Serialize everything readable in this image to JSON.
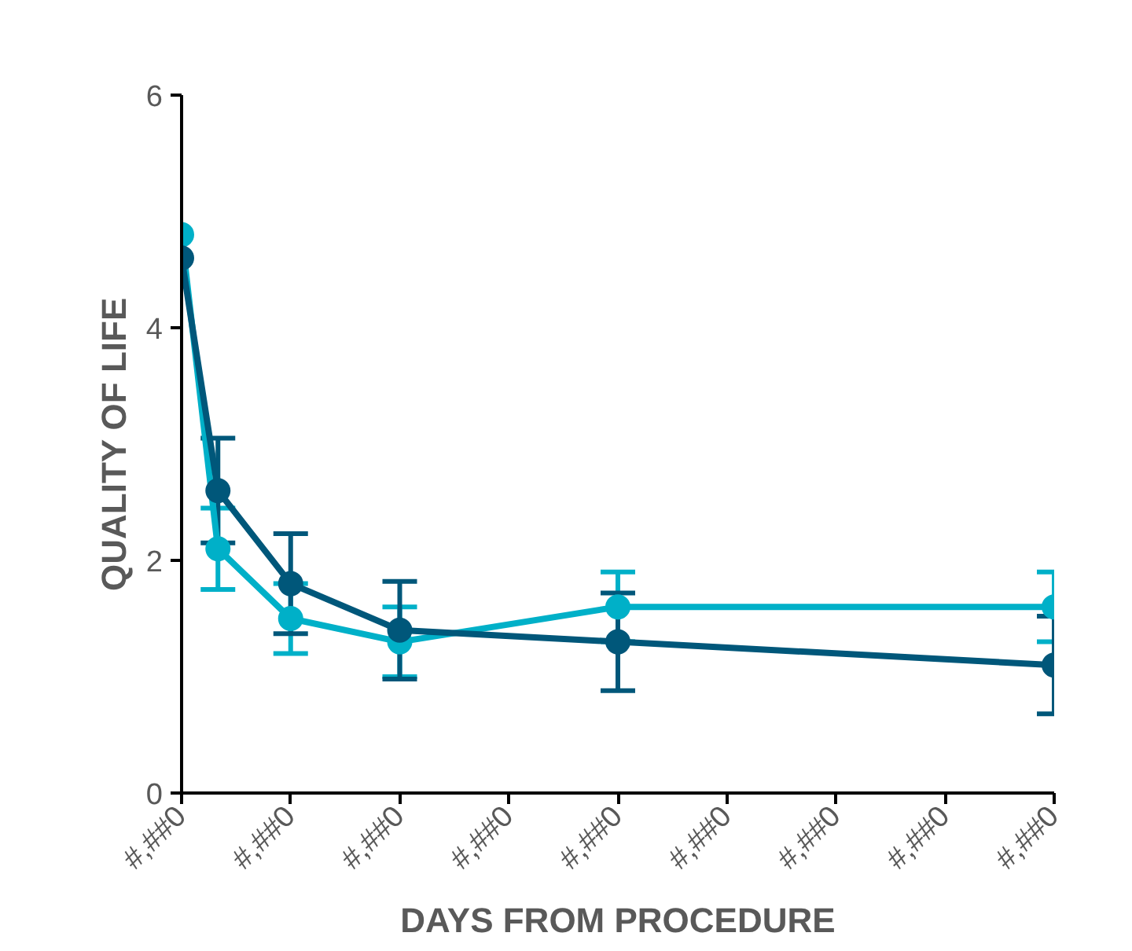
{
  "chart_data": {
    "type": "line",
    "xlabel": "DAYS FROM PROCEDURE",
    "ylabel": "QUALITY OF LIFE",
    "categories": [
      "#,##0",
      null,
      null,
      "#,##0",
      null,
      null,
      "#,##0",
      null,
      null,
      "#,##0",
      null,
      null,
      "#,##0",
      null,
      null,
      "#,##0",
      null,
      null,
      "#,##0",
      null,
      null,
      "#,##0",
      null,
      null,
      "#,##0"
    ],
    "ylim": [
      0,
      6
    ],
    "yticks": [
      0,
      2,
      4,
      6
    ],
    "grid": false,
    "marker": "circle",
    "line_style": "solid",
    "series": [
      {
        "color": "#00b0c8",
        "values": [
          4.8,
          2.1,
          null,
          1.5,
          null,
          null,
          1.3,
          null,
          null,
          null,
          null,
          null,
          1.6,
          null,
          null,
          null,
          null,
          null,
          null,
          null,
          null,
          null,
          null,
          null,
          1.6
        ],
        "errors": [
          null,
          0.35,
          null,
          0.3,
          null,
          null,
          0.3,
          null,
          null,
          null,
          null,
          null,
          0.3,
          null,
          null,
          null,
          null,
          null,
          null,
          null,
          null,
          null,
          null,
          null,
          0.3
        ]
      },
      {
        "color": "#00577a",
        "values": [
          4.6,
          2.6,
          null,
          1.8,
          null,
          null,
          1.4,
          null,
          null,
          null,
          null,
          null,
          1.3,
          null,
          null,
          null,
          null,
          null,
          null,
          null,
          null,
          null,
          null,
          null,
          1.1
        ],
        "errors": [
          null,
          0.45,
          null,
          0.43,
          null,
          null,
          0.42,
          null,
          null,
          null,
          null,
          null,
          0.42,
          null,
          null,
          null,
          null,
          null,
          null,
          null,
          null,
          null,
          null,
          null,
          0.42
        ]
      }
    ]
  }
}
